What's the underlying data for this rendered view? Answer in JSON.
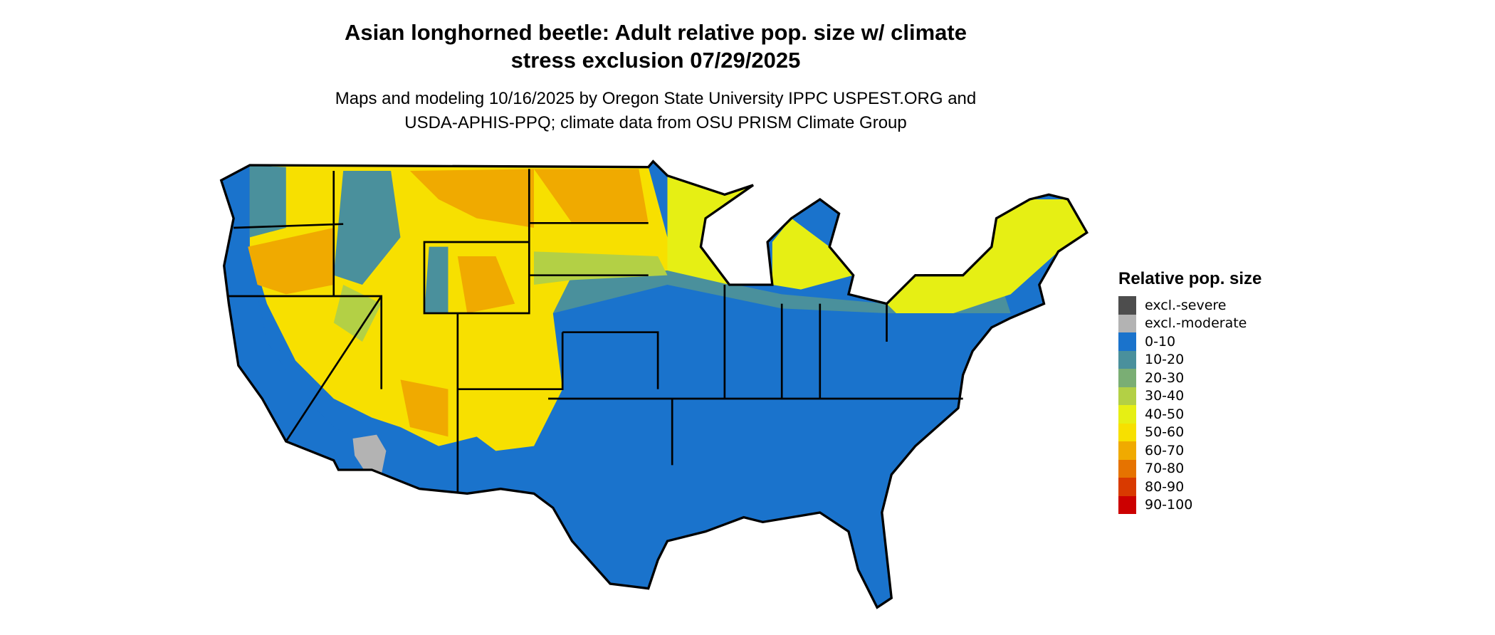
{
  "title": [
    "Asian longhorned beetle: Adult relative pop. size w/ climate",
    "stress exclusion 07/29/2025"
  ],
  "subtitle": [
    "Maps and modeling 10/16/2025 by Oregon State University IPPC USPEST.ORG and",
    "USDA-APHIS-PPQ; climate data from OSU PRISM Climate Group"
  ],
  "legend": {
    "title": "Relative pop. size",
    "items": [
      {
        "label": "excl.-severe",
        "color": "#4d4d4d"
      },
      {
        "label": "excl.-moderate",
        "color": "#b3b3b3"
      },
      {
        "label": "0-10",
        "color": "#1a73cc"
      },
      {
        "label": "10-20",
        "color": "#4a909c"
      },
      {
        "label": "20-30",
        "color": "#7aae74"
      },
      {
        "label": "30-40",
        "color": "#b3d045"
      },
      {
        "label": "40-50",
        "color": "#e6ef14"
      },
      {
        "label": "50-60",
        "color": "#f7e000"
      },
      {
        "label": "60-70",
        "color": "#f0aa00"
      },
      {
        "label": "70-80",
        "color": "#e67300"
      },
      {
        "label": "80-90",
        "color": "#d93a00"
      },
      {
        "label": "90-100",
        "color": "#cc0000"
      }
    ]
  }
}
